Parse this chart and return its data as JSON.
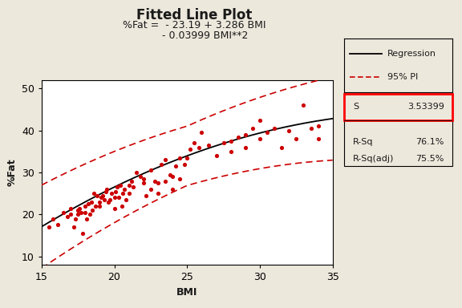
{
  "title": "Fitted Line Plot",
  "subtitle_line1": "%Fat =  - 23.19 + 3.286 BMI",
  "subtitle_line2": "       - 0.03999 BMI**2",
  "xlabel": "BMI",
  "ylabel": "%Fat",
  "bg_color": "#ede8dc",
  "plot_bg": "#ffffff",
  "xlim": [
    15,
    35
  ],
  "ylim": [
    8,
    52
  ],
  "xticks": [
    15,
    20,
    25,
    30,
    35
  ],
  "yticks": [
    10,
    20,
    30,
    40,
    50
  ],
  "eq_a": -23.19,
  "eq_b": 3.286,
  "eq_c": -0.03999,
  "pi_s": 3.53399,
  "pi_s_str": "3.53399",
  "r_sq": "76.1%",
  "r_sq_adj": "75.5%",
  "scatter_points": [
    [
      15.5,
      17.0
    ],
    [
      15.8,
      19.0
    ],
    [
      16.1,
      17.5
    ],
    [
      16.5,
      20.5
    ],
    [
      16.8,
      19.5
    ],
    [
      17.0,
      20.0
    ],
    [
      17.0,
      21.5
    ],
    [
      17.2,
      17.0
    ],
    [
      17.3,
      19.0
    ],
    [
      17.5,
      20.0
    ],
    [
      17.5,
      21.0
    ],
    [
      17.6,
      21.5
    ],
    [
      17.7,
      20.5
    ],
    [
      17.8,
      15.5
    ],
    [
      18.0,
      22.0
    ],
    [
      18.0,
      20.5
    ],
    [
      18.1,
      19.0
    ],
    [
      18.2,
      22.5
    ],
    [
      18.3,
      20.0
    ],
    [
      18.4,
      23.0
    ],
    [
      18.5,
      21.0
    ],
    [
      18.6,
      25.0
    ],
    [
      18.7,
      22.0
    ],
    [
      18.8,
      24.5
    ],
    [
      19.0,
      22.0
    ],
    [
      19.0,
      23.0
    ],
    [
      19.1,
      24.0
    ],
    [
      19.2,
      24.5
    ],
    [
      19.3,
      23.5
    ],
    [
      19.4,
      25.5
    ],
    [
      19.5,
      26.0
    ],
    [
      19.6,
      23.0
    ],
    [
      19.7,
      23.5
    ],
    [
      19.8,
      25.0
    ],
    [
      20.0,
      21.5
    ],
    [
      20.0,
      24.0
    ],
    [
      20.1,
      25.5
    ],
    [
      20.2,
      26.5
    ],
    [
      20.3,
      24.0
    ],
    [
      20.4,
      27.0
    ],
    [
      20.5,
      22.0
    ],
    [
      20.6,
      25.0
    ],
    [
      20.7,
      26.0
    ],
    [
      20.8,
      23.5
    ],
    [
      21.0,
      25.0
    ],
    [
      21.0,
      27.0
    ],
    [
      21.2,
      28.0
    ],
    [
      21.3,
      26.5
    ],
    [
      21.5,
      30.0
    ],
    [
      21.8,
      29.0
    ],
    [
      22.0,
      27.5
    ],
    [
      22.0,
      28.5
    ],
    [
      22.2,
      24.5
    ],
    [
      22.5,
      30.5
    ],
    [
      22.5,
      26.0
    ],
    [
      22.8,
      28.0
    ],
    [
      23.0,
      25.0
    ],
    [
      23.0,
      27.5
    ],
    [
      23.2,
      32.0
    ],
    [
      23.5,
      33.0
    ],
    [
      23.5,
      28.0
    ],
    [
      23.8,
      29.5
    ],
    [
      24.0,
      26.0
    ],
    [
      24.0,
      29.0
    ],
    [
      24.2,
      31.5
    ],
    [
      24.5,
      33.5
    ],
    [
      24.5,
      28.5
    ],
    [
      24.8,
      32.0
    ],
    [
      25.0,
      33.5
    ],
    [
      25.2,
      35.5
    ],
    [
      25.5,
      37.0
    ],
    [
      25.8,
      36.0
    ],
    [
      26.0,
      39.5
    ],
    [
      26.5,
      36.5
    ],
    [
      27.0,
      34.0
    ],
    [
      27.5,
      37.0
    ],
    [
      28.0,
      37.5
    ],
    [
      28.0,
      35.0
    ],
    [
      28.5,
      38.5
    ],
    [
      29.0,
      39.0
    ],
    [
      29.0,
      36.0
    ],
    [
      29.5,
      40.5
    ],
    [
      30.0,
      38.0
    ],
    [
      30.0,
      42.5
    ],
    [
      30.5,
      39.5
    ],
    [
      31.0,
      40.5
    ],
    [
      31.5,
      36.0
    ],
    [
      32.0,
      40.0
    ],
    [
      32.5,
      38.0
    ],
    [
      33.0,
      46.0
    ],
    [
      33.5,
      40.5
    ],
    [
      34.0,
      41.0
    ],
    [
      34.0,
      38.0
    ]
  ],
  "scatter_color": "#cc0000",
  "line_color": "#000000",
  "pi_color": "#cc0000",
  "title_fontsize": 12,
  "subtitle_fontsize": 9,
  "axis_fontsize": 9,
  "tick_fontsize": 9,
  "legend_fontsize": 8,
  "stats_fontsize": 8,
  "text_color": "#1a1a1a"
}
